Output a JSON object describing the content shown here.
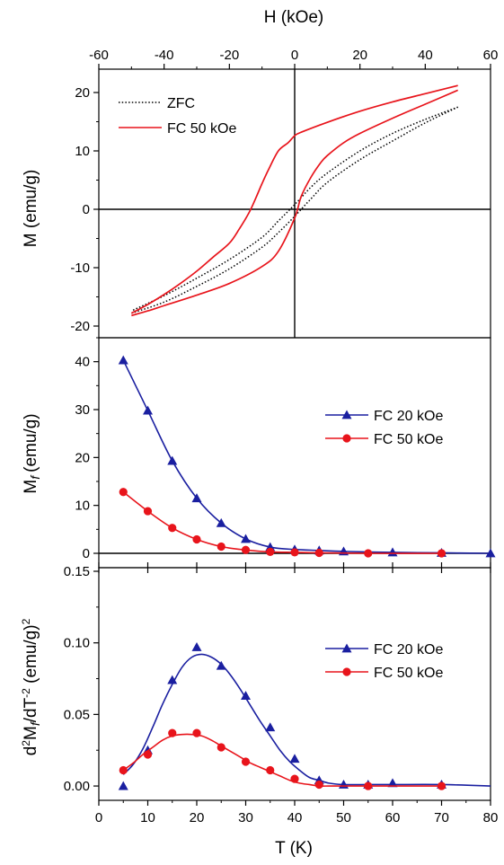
{
  "chart_data": [
    {
      "type": "line",
      "panel": "top",
      "xlabel": "H (kOe)",
      "ylabel": "M (emu/g)",
      "xlim": [
        -60,
        60
      ],
      "ylim": [
        -22,
        24
      ],
      "xticks": [
        -60,
        -40,
        -20,
        0,
        20,
        40,
        60
      ],
      "yticks": [
        -20,
        -10,
        0,
        10,
        20
      ],
      "x_axis_position": "top",
      "legend_position": "top-left",
      "grid": false,
      "series": [
        {
          "name": "ZFC",
          "color": "#000000",
          "style": "dotted",
          "loop": {
            "descending": [
              [
                50,
                17.5
              ],
              [
                40,
                15.4
              ],
              [
                30,
                13.0
              ],
              [
                20,
                10.0
              ],
              [
                10,
                6.2
              ],
              [
                5,
                3.8
              ],
              [
                0,
                0.8
              ],
              [
                -5,
                -2.0
              ],
              [
                -10,
                -4.8
              ],
              [
                -20,
                -8.6
              ],
              [
                -30,
                -11.8
              ],
              [
                -40,
                -14.8
              ],
              [
                -50,
                -17.4
              ]
            ],
            "ascending": [
              [
                -50,
                -17.8
              ],
              [
                -40,
                -15.9
              ],
              [
                -30,
                -13.2
              ],
              [
                -20,
                -10.2
              ],
              [
                -10,
                -6.5
              ],
              [
                -5,
                -4.0
              ],
              [
                0,
                -1.2
              ],
              [
                5,
                1.8
              ],
              [
                10,
                4.6
              ],
              [
                20,
                8.5
              ],
              [
                30,
                11.7
              ],
              [
                40,
                14.8
              ],
              [
                50,
                17.5
              ]
            ]
          }
        },
        {
          "name": "FC 50 kOe",
          "color": "#e8141b",
          "style": "solid",
          "loop": {
            "descending": [
              [
                50,
                21.2
              ],
              [
                40,
                19.8
              ],
              [
                30,
                18.4
              ],
              [
                20,
                16.8
              ],
              [
                10,
                14.9
              ],
              [
                2,
                13.2
              ],
              [
                0,
                12.6
              ],
              [
                -2,
                11.4
              ],
              [
                -5,
                10.0
              ],
              [
                -8,
                6.8
              ],
              [
                -10,
                4.4
              ],
              [
                -12,
                1.8
              ],
              [
                -14,
                -0.6
              ],
              [
                -17,
                -3.4
              ],
              [
                -20,
                -5.8
              ],
              [
                -25,
                -8.2
              ],
              [
                -30,
                -10.6
              ],
              [
                -35,
                -12.7
              ],
              [
                -40,
                -14.6
              ],
              [
                -45,
                -16.3
              ],
              [
                -50,
                -17.8
              ]
            ],
            "ascending": [
              [
                -50,
                -18.2
              ],
              [
                -45,
                -17.4
              ],
              [
                -40,
                -16.5
              ],
              [
                -30,
                -14.7
              ],
              [
                -20,
                -12.7
              ],
              [
                -10,
                -9.8
              ],
              [
                -5,
                -7.2
              ],
              [
                0,
                -1.5
              ],
              [
                2,
                2.2
              ],
              [
                5,
                5.5
              ],
              [
                8,
                8.0
              ],
              [
                10,
                9.2
              ],
              [
                15,
                11.4
              ],
              [
                20,
                13.0
              ],
              [
                30,
                15.6
              ],
              [
                40,
                18.0
              ],
              [
                50,
                20.4
              ]
            ]
          }
        }
      ]
    },
    {
      "type": "line",
      "panel": "middle",
      "xlabel": "",
      "ylabel_main": "M",
      "ylabel_sub": "f",
      "ylabel_rest": "(emu/g)",
      "xlim": [
        0,
        80
      ],
      "ylim": [
        -3,
        45
      ],
      "yticks": [
        0,
        10,
        20,
        30,
        40
      ],
      "legend_position": "right",
      "grid": false,
      "series": [
        {
          "name": "FC 20 kOe",
          "color": "#1a1fa0",
          "marker": "triangle",
          "x": [
            5,
            10,
            15,
            20,
            25,
            30,
            35,
            40,
            45,
            50,
            60,
            70,
            80
          ],
          "y": [
            40.3,
            29.8,
            19.3,
            11.5,
            6.3,
            3.0,
            1.3,
            0.8,
            0.6,
            0.4,
            0.2,
            0.1,
            0.0
          ]
        },
        {
          "name": "FC 50 kOe",
          "color": "#e8141b",
          "marker": "circle",
          "x": [
            5,
            10,
            15,
            20,
            25,
            30,
            35,
            40,
            45,
            55,
            70
          ],
          "y": [
            12.8,
            8.8,
            5.3,
            2.9,
            1.4,
            0.7,
            0.3,
            0.2,
            0.1,
            0.0,
            0.0
          ]
        }
      ]
    },
    {
      "type": "line",
      "panel": "bottom",
      "xlabel": "T (K)",
      "ylabel_a": "d",
      "ylabel_sup1": "2",
      "ylabel_b": "M",
      "ylabel_sub": "f",
      "ylabel_c": "/dT",
      "ylabel_sup2": "-2",
      "ylabel_d": " (emu/g)",
      "ylabel_sup3": "2",
      "xlim": [
        0,
        80
      ],
      "ylim": [
        -0.01,
        0.15
      ],
      "xticks": [
        0,
        10,
        20,
        30,
        40,
        50,
        60,
        70,
        80
      ],
      "yticks": [
        0.0,
        0.05,
        0.1,
        0.15
      ],
      "ytick_labels": [
        "0.00",
        "0.05",
        "0.10",
        "0.15"
      ],
      "legend_position": "right",
      "grid": false,
      "series": [
        {
          "name": "FC 20 kOe",
          "color": "#1a1fa0",
          "marker": "triangle",
          "x": [
            5,
            10,
            15,
            20,
            25,
            30,
            35,
            40,
            45,
            50,
            55,
            60,
            70
          ],
          "y": [
            0.0,
            0.025,
            0.074,
            0.097,
            0.084,
            0.063,
            0.041,
            0.019,
            0.004,
            0.001,
            0.001,
            0.002,
            0.001
          ],
          "fit_x": [
            5,
            7,
            9,
            11,
            13,
            15,
            17,
            19,
            21,
            23,
            25,
            27,
            29,
            31,
            33,
            35,
            37,
            39,
            41,
            43,
            45,
            47,
            50,
            55,
            60,
            70,
            80
          ],
          "fit_y": [
            0.008,
            0.015,
            0.026,
            0.041,
            0.057,
            0.071,
            0.083,
            0.09,
            0.092,
            0.09,
            0.085,
            0.077,
            0.067,
            0.056,
            0.045,
            0.035,
            0.025,
            0.017,
            0.011,
            0.006,
            0.004,
            0.002,
            0.001,
            0.001,
            0.001,
            0.001,
            0.0
          ]
        },
        {
          "name": "FC 50 kOe",
          "color": "#e8141b",
          "marker": "circle",
          "x": [
            5,
            10,
            15,
            20,
            25,
            30,
            35,
            40,
            45,
            55,
            70
          ],
          "y": [
            0.011,
            0.022,
            0.037,
            0.037,
            0.027,
            0.017,
            0.011,
            0.005,
            0.001,
            0.0,
            0.0
          ],
          "fit_x": [
            5,
            7,
            9,
            11,
            13,
            15,
            17,
            19,
            21,
            23,
            25,
            27,
            29,
            31,
            33,
            35,
            37,
            39,
            41,
            43,
            45,
            47,
            50,
            55,
            60,
            70
          ],
          "fit_y": [
            0.011,
            0.016,
            0.022,
            0.027,
            0.032,
            0.035,
            0.036,
            0.036,
            0.035,
            0.032,
            0.028,
            0.024,
            0.02,
            0.016,
            0.013,
            0.01,
            0.007,
            0.004,
            0.002,
            0.001,
            0.0,
            0.0,
            0.0,
            0.0,
            0.0,
            0.0
          ]
        }
      ]
    }
  ]
}
